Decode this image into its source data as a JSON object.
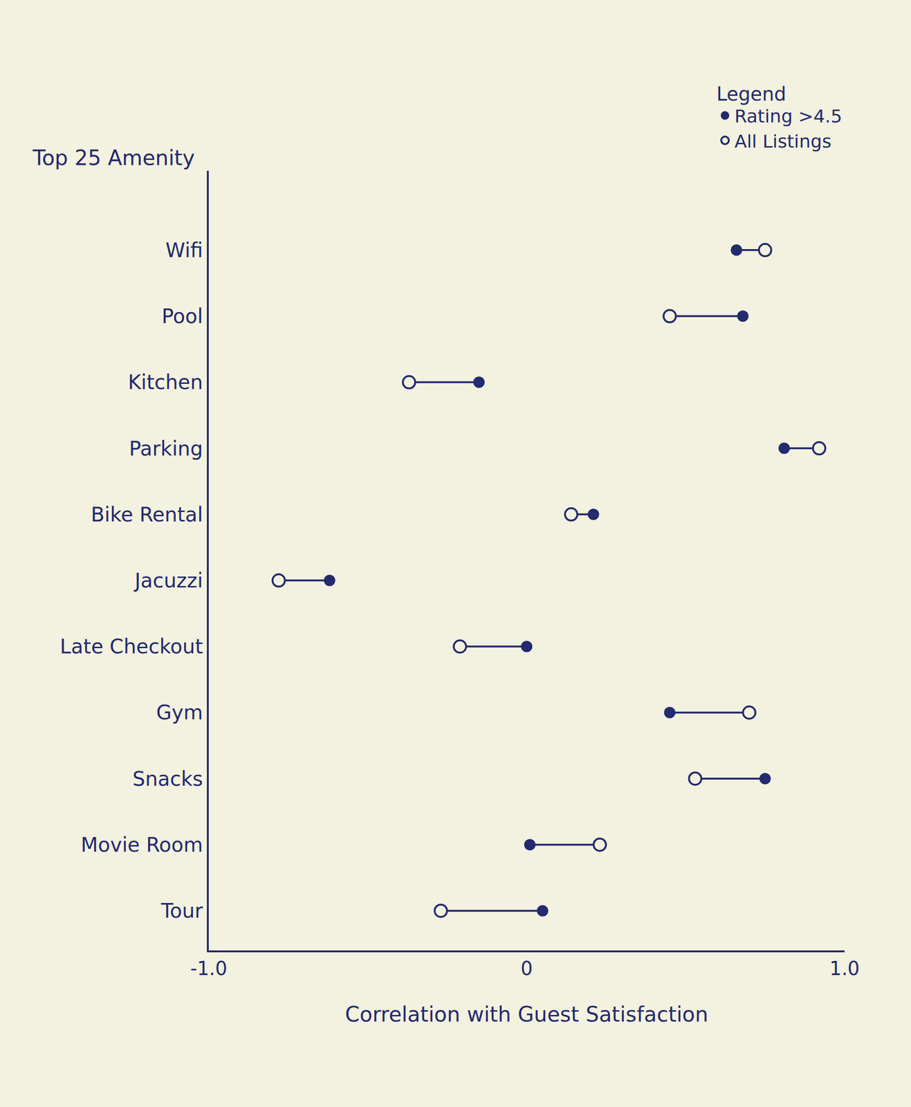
{
  "chart_data": {
    "type": "dumbbell",
    "y_title": "Top 25 Amenity",
    "x_title": "Correlation with Guest Satisfaction",
    "legend_title": "Legend",
    "categories": [
      "Wifi",
      "Pool",
      "Kitchen",
      "Parking",
      "Bike Rental",
      "Jacuzzi",
      "Late Checkout",
      "Gym",
      "Snacks",
      "Movie Room",
      "Tour"
    ],
    "series": [
      {
        "name": "Rating >4.5",
        "color": "#232a6e",
        "marker": "filled",
        "values": [
          0.66,
          0.68,
          -0.15,
          0.81,
          0.21,
          -0.62,
          0.0,
          0.45,
          0.75,
          0.01,
          0.05
        ]
      },
      {
        "name": "All Listings",
        "color": "#232a6e",
        "marker": "open",
        "values": [
          0.75,
          0.45,
          -0.37,
          0.92,
          0.14,
          -0.78,
          -0.21,
          0.7,
          0.53,
          0.23,
          -0.27
        ]
      }
    ],
    "xlim": [
      -1,
      1
    ],
    "xticks": [
      {
        "value": -1,
        "label": "-1.0"
      },
      0,
      {
        "value": 1,
        "label": "1.0"
      }
    ],
    "grid": false,
    "legend": "top right"
  }
}
